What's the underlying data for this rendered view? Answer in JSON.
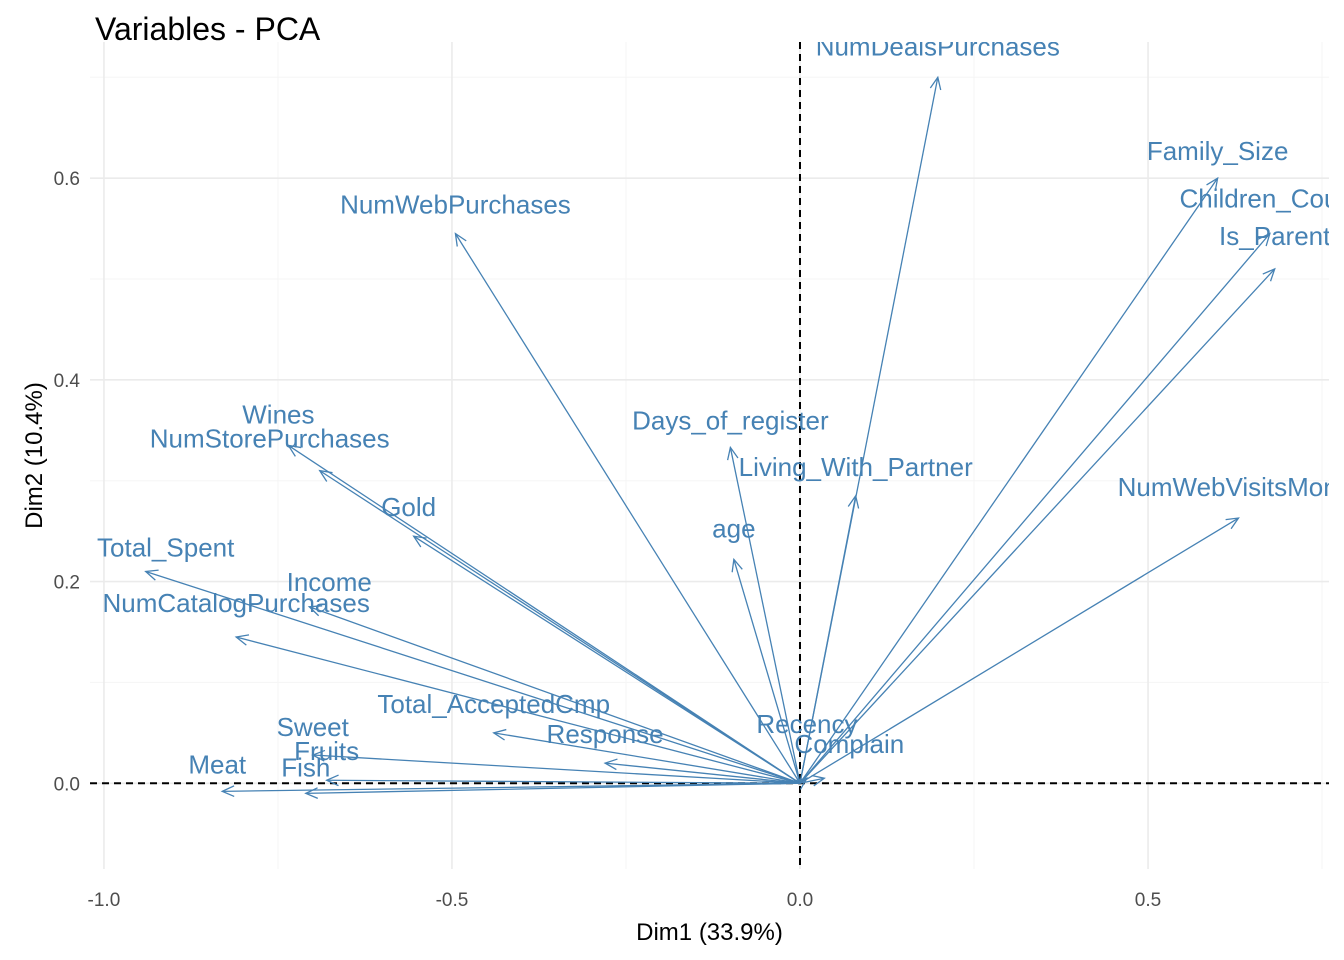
{
  "chart_data": {
    "type": "scatter",
    "subtype": "pca-variable-correlation-circle",
    "title": "Variables - PCA",
    "xlabel": "Dim1 (33.9%)",
    "ylabel": "Dim2 (10.4%)",
    "xlim": [
      -1.02,
      0.76
    ],
    "ylim": [
      -0.085,
      0.735
    ],
    "x_ticks": [
      -1.0,
      -0.5,
      0.0,
      0.5
    ],
    "x_tick_labels": [
      "-1.0",
      "-0.5",
      "0.0",
      "0.5"
    ],
    "y_ticks": [
      0.0,
      0.2,
      0.4,
      0.6
    ],
    "y_tick_labels": [
      "0.0",
      "0.2",
      "0.4",
      "0.6"
    ],
    "grid": true,
    "arrow_color": "#4682B4",
    "variables": [
      {
        "label": "NumDealsPurchases",
        "x": 0.198,
        "y": 0.7
      },
      {
        "label": "Family_Size",
        "x": 0.6,
        "y": 0.6
      },
      {
        "label": "Children_Count",
        "x": 0.675,
        "y": 0.545
      },
      {
        "label": "Is_Parent",
        "x": 0.682,
        "y": 0.51
      },
      {
        "label": "NumWebPurchases",
        "x": -0.495,
        "y": 0.545
      },
      {
        "label": "NumWebVisitsMonth",
        "x": 0.63,
        "y": 0.263
      },
      {
        "label": "Days_of_register",
        "x": -0.1,
        "y": 0.333
      },
      {
        "label": "Living_With_Partner",
        "x": 0.08,
        "y": 0.285
      },
      {
        "label": "age",
        "x": -0.095,
        "y": 0.222
      },
      {
        "label": "Wines",
        "x": -0.735,
        "y": 0.335
      },
      {
        "label": "NumStorePurchases",
        "x": -0.69,
        "y": 0.31
      },
      {
        "label": "Gold",
        "x": -0.555,
        "y": 0.245
      },
      {
        "label": "Total_Spent",
        "x": -0.94,
        "y": 0.21
      },
      {
        "label": "Income",
        "x": -0.705,
        "y": 0.175
      },
      {
        "label": "NumCatalogPurchases",
        "x": -0.81,
        "y": 0.145
      },
      {
        "label": "Total_AcceptedCmp",
        "x": -0.44,
        "y": 0.05
      },
      {
        "label": "Response",
        "x": -0.28,
        "y": 0.02
      },
      {
        "label": "Sweet",
        "x": -0.7,
        "y": 0.028
      },
      {
        "label": "Fruits",
        "x": -0.68,
        "y": 0.003
      },
      {
        "label": "Meat",
        "x": -0.83,
        "y": -0.008
      },
      {
        "label": "Fish",
        "x": -0.71,
        "y": -0.01
      },
      {
        "label": "Recency",
        "x": 0.01,
        "y": 0.005
      },
      {
        "label": "Complain",
        "x": 0.035,
        "y": 0.005
      }
    ]
  }
}
